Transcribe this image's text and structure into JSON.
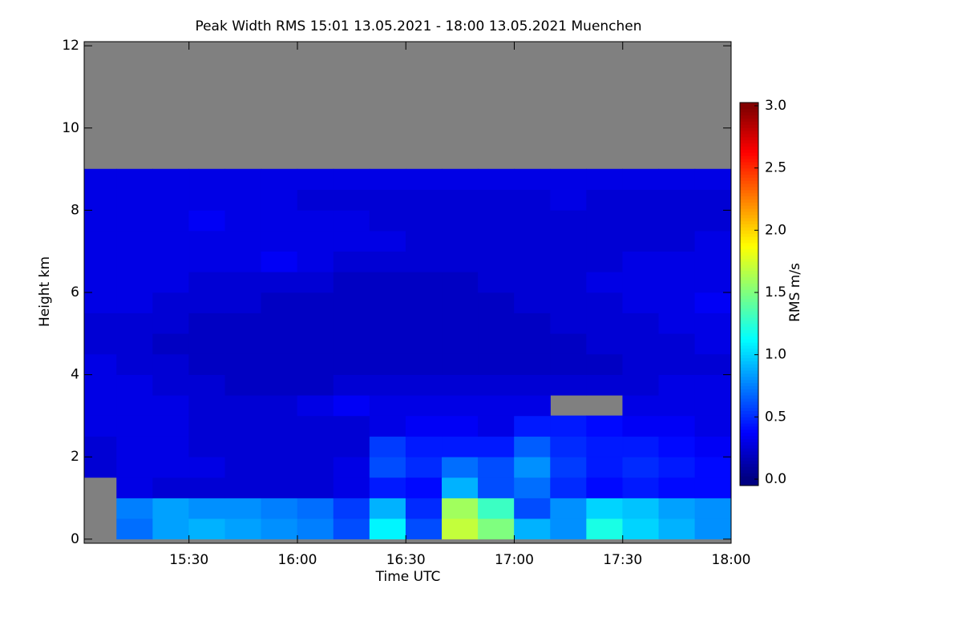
{
  "chart_data": {
    "type": "heatmap",
    "title": "Peak Width RMS   15:01 13.05.2021 - 18:00 13.05.2021 Muenchen",
    "x_label": "Time UTC",
    "y_label": "Height km",
    "colorbar_label": "RMS m/s",
    "xlim": [
      15.0167,
      18.0
    ],
    "xticks": [
      {
        "value": 15.5,
        "label": "15:30"
      },
      {
        "value": 16.0,
        "label": "16:00"
      },
      {
        "value": 16.5,
        "label": "16:30"
      },
      {
        "value": 17.0,
        "label": "17:00"
      },
      {
        "value": 17.5,
        "label": "17:30"
      },
      {
        "value": 18.0,
        "label": "18:00"
      }
    ],
    "ylim": [
      -0.1,
      12.1
    ],
    "yticks": [
      0,
      2,
      4,
      6,
      8,
      10,
      12
    ],
    "clim": [
      0,
      3
    ],
    "cticks": [
      {
        "value": 0,
        "label": "0.0"
      },
      0.5,
      {
        "value": 1,
        "label": "1.0"
      },
      1.5,
      {
        "value": 2,
        "label": "2.0"
      },
      2.5,
      {
        "value": 3,
        "label": "3.0"
      }
    ],
    "colormap": [
      "#00007f",
      "#0000ff",
      "#007fff",
      "#00ffff",
      "#7fff7f",
      "#ffff00",
      "#ff7f00",
      "#ff0000",
      "#7f0000"
    ],
    "no_data_color": "#808080",
    "xbins": [
      15.0167,
      15.1667,
      15.3333,
      15.5,
      15.6667,
      15.8333,
      16.0,
      16.1667,
      16.3333,
      16.5,
      16.6667,
      16.8333,
      17.0,
      17.1667,
      17.3333,
      17.5,
      17.6667,
      17.8333,
      18.0
    ],
    "ybins": [
      0,
      0.5,
      1,
      1.5,
      2,
      2.5,
      3,
      3.5,
      4,
      4.5,
      5,
      5.5,
      6,
      6.5,
      7,
      7.5,
      8,
      8.5,
      9
    ],
    "z": [
      [
        null,
        0.7,
        0.85,
        0.9,
        0.85,
        0.8,
        0.75,
        0.6,
        1.1,
        0.6,
        1.7,
        1.5,
        0.9,
        0.8,
        1.2,
        1.0,
        0.9,
        0.8
      ],
      [
        null,
        0.75,
        0.85,
        0.8,
        0.8,
        0.75,
        0.7,
        0.55,
        0.9,
        0.5,
        1.6,
        1.3,
        0.6,
        0.8,
        1.0,
        0.95,
        0.85,
        0.8
      ],
      [
        null,
        0.3,
        0.25,
        0.25,
        0.25,
        0.25,
        0.25,
        0.3,
        0.45,
        0.4,
        0.9,
        0.6,
        0.7,
        0.5,
        0.4,
        0.45,
        0.4,
        0.4
      ],
      [
        0.25,
        0.3,
        0.3,
        0.3,
        0.25,
        0.25,
        0.25,
        0.3,
        0.6,
        0.5,
        0.7,
        0.6,
        0.8,
        0.55,
        0.45,
        0.5,
        0.45,
        0.4
      ],
      [
        0.25,
        0.3,
        0.3,
        0.25,
        0.25,
        0.25,
        0.25,
        0.25,
        0.55,
        0.45,
        0.45,
        0.45,
        0.65,
        0.5,
        0.45,
        0.45,
        0.4,
        0.35
      ],
      [
        0.3,
        0.3,
        0.3,
        0.25,
        0.25,
        0.25,
        0.25,
        0.25,
        0.3,
        0.35,
        0.35,
        0.3,
        0.45,
        0.45,
        0.4,
        0.35,
        0.35,
        0.3
      ],
      [
        0.3,
        0.3,
        0.3,
        0.25,
        0.25,
        0.25,
        0.3,
        0.35,
        0.3,
        0.3,
        0.3,
        0.3,
        0.3,
        null,
        null,
        0.3,
        0.3,
        0.3
      ],
      [
        0.3,
        0.3,
        0.25,
        0.25,
        0.2,
        0.2,
        0.2,
        0.25,
        0.25,
        0.25,
        0.25,
        0.25,
        0.25,
        0.25,
        0.25,
        0.25,
        0.3,
        0.3
      ],
      [
        0.3,
        0.25,
        0.25,
        0.2,
        0.2,
        0.2,
        0.2,
        0.2,
        0.2,
        0.2,
        0.2,
        0.2,
        0.2,
        0.2,
        0.2,
        0.25,
        0.25,
        0.25
      ],
      [
        0.25,
        0.25,
        0.2,
        0.2,
        0.2,
        0.2,
        0.2,
        0.2,
        0.2,
        0.2,
        0.2,
        0.2,
        0.2,
        0.2,
        0.25,
        0.25,
        0.25,
        0.3
      ],
      [
        0.25,
        0.25,
        0.25,
        0.2,
        0.2,
        0.2,
        0.2,
        0.2,
        0.2,
        0.2,
        0.2,
        0.2,
        0.2,
        0.25,
        0.25,
        0.25,
        0.3,
        0.3
      ],
      [
        0.3,
        0.3,
        0.25,
        0.25,
        0.25,
        0.2,
        0.2,
        0.2,
        0.2,
        0.2,
        0.2,
        0.2,
        0.25,
        0.25,
        0.25,
        0.3,
        0.3,
        0.35
      ],
      [
        0.3,
        0.3,
        0.3,
        0.25,
        0.25,
        0.25,
        0.25,
        0.2,
        0.2,
        0.2,
        0.2,
        0.25,
        0.25,
        0.25,
        0.3,
        0.3,
        0.3,
        0.3
      ],
      [
        0.3,
        0.3,
        0.3,
        0.3,
        0.3,
        0.35,
        0.3,
        0.25,
        0.25,
        0.25,
        0.25,
        0.25,
        0.25,
        0.25,
        0.25,
        0.3,
        0.3,
        0.3
      ],
      [
        0.3,
        0.3,
        0.3,
        0.3,
        0.3,
        0.3,
        0.3,
        0.3,
        0.3,
        0.25,
        0.25,
        0.25,
        0.25,
        0.25,
        0.25,
        0.25,
        0.25,
        0.3
      ],
      [
        0.3,
        0.3,
        0.3,
        0.35,
        0.3,
        0.3,
        0.3,
        0.3,
        0.25,
        0.25,
        0.25,
        0.25,
        0.25,
        0.25,
        0.25,
        0.25,
        0.25,
        0.25
      ],
      [
        0.3,
        0.3,
        0.3,
        0.3,
        0.3,
        0.3,
        0.25,
        0.25,
        0.25,
        0.25,
        0.25,
        0.25,
        0.25,
        0.3,
        0.25,
        0.25,
        0.25,
        0.25
      ],
      [
        0.3,
        0.3,
        0.3,
        0.3,
        0.3,
        0.3,
        0.3,
        0.3,
        0.3,
        0.3,
        0.3,
        0.3,
        0.3,
        0.3,
        0.3,
        0.3,
        0.3,
        0.3
      ]
    ]
  }
}
